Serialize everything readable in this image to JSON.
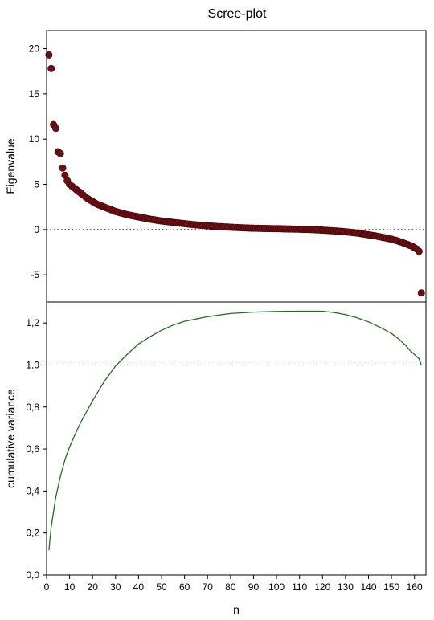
{
  "chart_data": [
    {
      "type": "scatter",
      "title": "Scree-plot",
      "xlabel": "",
      "ylabel": "Eigenvalue",
      "xlim": [
        0,
        165
      ],
      "ylim": [
        -8,
        22
      ],
      "y_ticks": [
        20,
        15,
        10,
        5,
        0,
        -5
      ],
      "y_tick_labels": [
        "20",
        "15",
        "10",
        "5",
        "0",
        "-5"
      ],
      "reference_line": {
        "y": 0,
        "style": "dotted"
      },
      "marker_color": "#6b0f14",
      "points": {
        "x": [
          1,
          2,
          3,
          4,
          5,
          6,
          7,
          8,
          9,
          10,
          12,
          14,
          16,
          18,
          20,
          22,
          25,
          28,
          30,
          35,
          40,
          45,
          50,
          55,
          60,
          65,
          70,
          75,
          80,
          85,
          90,
          95,
          100,
          105,
          110,
          115,
          120,
          125,
          130,
          135,
          140,
          143,
          146,
          149,
          152,
          155,
          157,
          159,
          160,
          161,
          162,
          163
        ],
        "y": [
          19.3,
          17.8,
          11.6,
          11.2,
          8.6,
          8.4,
          6.8,
          6.0,
          5.4,
          5.0,
          4.6,
          4.2,
          3.8,
          3.4,
          3.1,
          2.8,
          2.5,
          2.2,
          2.0,
          1.65,
          1.4,
          1.15,
          0.95,
          0.8,
          0.65,
          0.52,
          0.42,
          0.33,
          0.26,
          0.2,
          0.15,
          0.12,
          0.1,
          0.07,
          0.04,
          0.0,
          -0.06,
          -0.14,
          -0.24,
          -0.38,
          -0.58,
          -0.7,
          -0.85,
          -1.0,
          -1.2,
          -1.45,
          -1.65,
          -1.85,
          -2.0,
          -2.15,
          -2.4,
          -7.0
        ]
      }
    },
    {
      "type": "line",
      "title": "",
      "xlabel": "n",
      "ylabel": "cumulative variance",
      "xlim": [
        0,
        165
      ],
      "ylim": [
        0,
        1.3
      ],
      "x_ticks": [
        0,
        10,
        20,
        30,
        40,
        50,
        60,
        70,
        80,
        90,
        100,
        110,
        120,
        130,
        140,
        150,
        160
      ],
      "x_tick_labels": [
        "0",
        "10",
        "20",
        "30",
        "40",
        "50",
        "60",
        "70",
        "80",
        "90",
        "100",
        "110",
        "120",
        "130",
        "140",
        "150",
        "160"
      ],
      "y_ticks": [
        0,
        0.2,
        0.4,
        0.6,
        0.8,
        1.0,
        1.2
      ],
      "y_tick_labels": [
        "0,0",
        "0,2",
        "0,4",
        "0,6",
        "0,8",
        "1,0",
        "1,2"
      ],
      "reference_line": {
        "y": 1.0,
        "style": "dotted"
      },
      "line_color": "#1f6b1f",
      "series": [
        {
          "x": [
            1,
            2,
            3,
            4,
            5,
            6,
            8,
            10,
            12,
            15,
            18,
            20,
            25,
            30,
            35,
            40,
            45,
            50,
            55,
            60,
            70,
            80,
            90,
            100,
            110,
            120,
            125,
            130,
            135,
            140,
            145,
            150,
            153,
            156,
            158,
            160,
            162,
            163
          ],
          "y": [
            0.118,
            0.228,
            0.3,
            0.37,
            0.42,
            0.47,
            0.55,
            0.61,
            0.66,
            0.73,
            0.79,
            0.83,
            0.92,
            0.995,
            1.05,
            1.1,
            1.135,
            1.165,
            1.19,
            1.208,
            1.23,
            1.245,
            1.252,
            1.255,
            1.256,
            1.256,
            1.25,
            1.24,
            1.225,
            1.205,
            1.18,
            1.15,
            1.125,
            1.095,
            1.07,
            1.05,
            1.03,
            1.0
          ]
        }
      ]
    }
  ]
}
